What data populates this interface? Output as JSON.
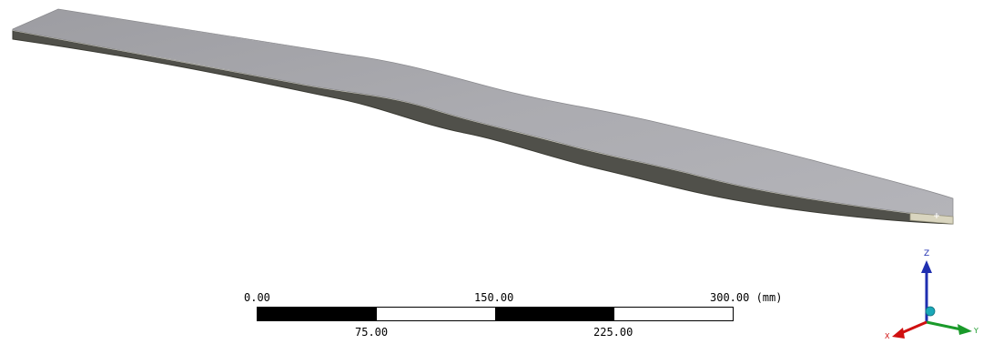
{
  "scale_bar": {
    "top_labels": [
      "0.00",
      "150.00",
      "300.00 (mm)"
    ],
    "bottom_labels": [
      "75.00",
      "225.00"
    ]
  },
  "triad": {
    "z_label": "Z",
    "x_label": "X",
    "y_label": "Y",
    "colors": {
      "z": "#1f2fb0",
      "x": "#d01010",
      "y": "#1a9a2a",
      "origin": "#1aa8b8"
    }
  },
  "model": {
    "top_color": "#a6a6ab",
    "side_color": "#55554a",
    "end_color": "#d9d5bf"
  }
}
